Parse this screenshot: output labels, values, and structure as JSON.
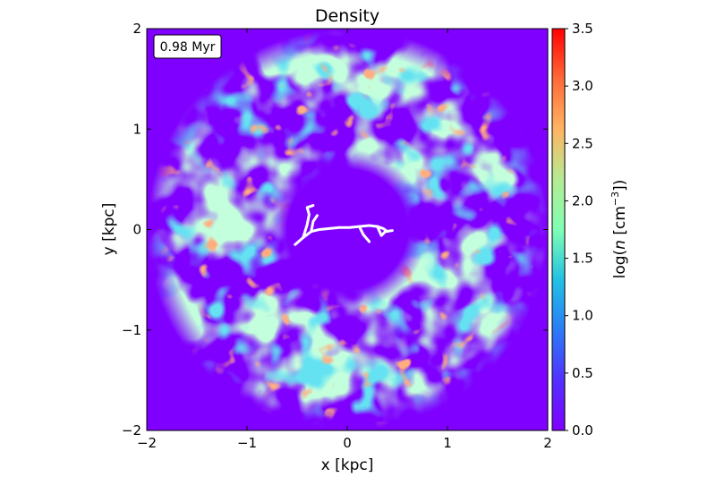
{
  "chart_data": {
    "type": "heatmap",
    "title": "Density",
    "xlabel": "x [kpc]",
    "ylabel": "y [kpc]",
    "xlim": [
      -2,
      2
    ],
    "ylim": [
      -2,
      2
    ],
    "x_ticks": [
      -2,
      -1,
      0,
      1,
      2
    ],
    "y_ticks": [
      -2,
      -1,
      0,
      1,
      2
    ],
    "x_tick_labels": [
      "−2",
      "−1",
      "0",
      "1",
      "2"
    ],
    "y_tick_labels": [
      "−2",
      "−1",
      "0",
      "1",
      "2"
    ],
    "time_label": "0.98 Myr",
    "colorbar": {
      "label_prefix": "log(",
      "label_var": "n",
      "label_unit": " [cm",
      "label_exp": "−3",
      "label_suffix": "])",
      "range": [
        0.0,
        3.5
      ],
      "ticks": [
        0.0,
        0.5,
        1.0,
        1.5,
        2.0,
        2.5,
        3.0,
        3.5
      ],
      "tick_labels": [
        "0.0",
        "0.5",
        "1.0",
        "1.5",
        "2.0",
        "2.5",
        "3.0",
        "3.5"
      ],
      "colormap": "rainbow"
    },
    "background_value": 0.0,
    "shell_inner_radius": 0.65,
    "shell_outer_radius": 2.0,
    "grid": false,
    "overlay_tracks": [
      {
        "name": "",
        "color": "#ffffff",
        "points": [
          [
            -0.52,
            -0.15
          ],
          [
            -0.44,
            -0.08
          ],
          [
            -0.36,
            -0.02
          ],
          [
            -0.28,
            0.0
          ],
          [
            -0.18,
            0.01
          ],
          [
            -0.08,
            0.02
          ],
          [
            0.02,
            0.02
          ],
          [
            0.12,
            0.03
          ],
          [
            0.22,
            0.04
          ],
          [
            0.3,
            0.03
          ],
          [
            0.36,
            0.01
          ],
          [
            0.4,
            -0.02
          ]
        ]
      },
      {
        "name": "",
        "color": "#ffffff",
        "points": [
          [
            -0.44,
            -0.08
          ],
          [
            -0.4,
            0.05
          ],
          [
            -0.38,
            0.15
          ],
          [
            -0.4,
            0.22
          ],
          [
            -0.34,
            0.24
          ]
        ]
      },
      {
        "name": "",
        "color": "#ffffff",
        "points": [
          [
            -0.36,
            -0.02
          ],
          [
            -0.34,
            0.08
          ],
          [
            -0.3,
            0.14
          ]
        ]
      },
      {
        "name": "",
        "color": "#ffffff",
        "points": [
          [
            0.12,
            0.03
          ],
          [
            0.16,
            -0.05
          ],
          [
            0.22,
            -0.12
          ]
        ]
      },
      {
        "name": "",
        "color": "#ffffff",
        "points": [
          [
            0.3,
            0.03
          ],
          [
            0.34,
            -0.06
          ],
          [
            0.38,
            -0.02
          ],
          [
            0.45,
            -0.01
          ]
        ]
      }
    ]
  }
}
